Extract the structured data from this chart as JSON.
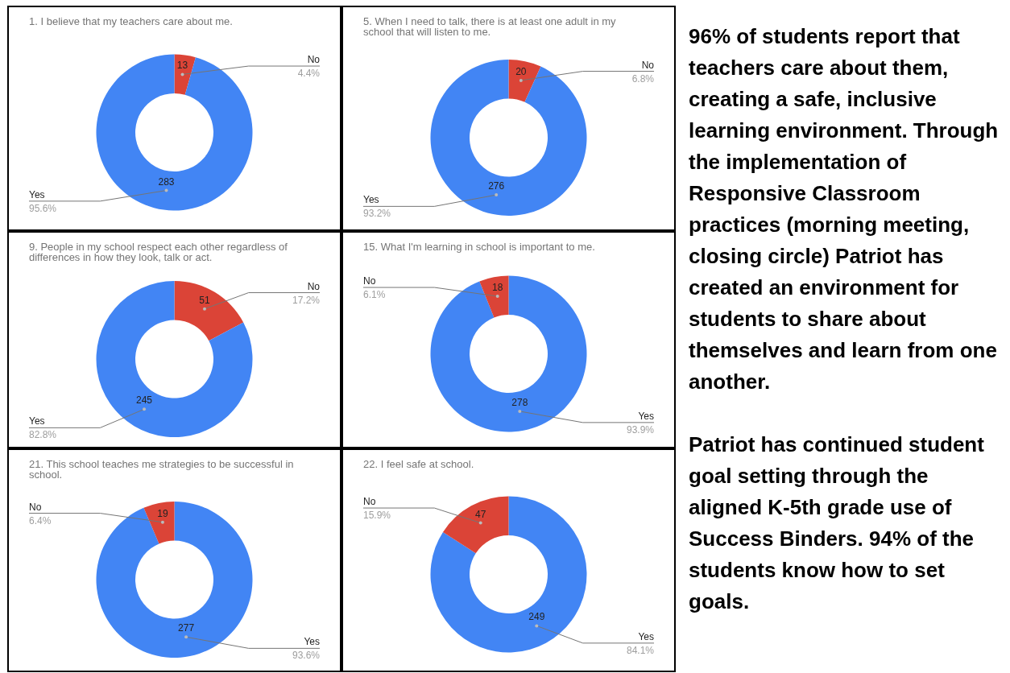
{
  "chart_data": [
    {
      "type": "donut",
      "title": "1.  I believe that my teachers care about me.",
      "categories": [
        "No",
        "Yes"
      ],
      "values": [
        13,
        283
      ],
      "colors": [
        "#db4437",
        "#4285f4"
      ],
      "data_labels": true,
      "annotations": [
        "4.4%",
        "95.6%"
      ]
    },
    {
      "type": "donut",
      "title": "5.  When I need to talk, there is at least one adult in my school that will listen to me.",
      "categories": [
        "No",
        "Yes"
      ],
      "values": [
        20,
        276
      ],
      "colors": [
        "#db4437",
        "#4285f4"
      ],
      "data_labels": true,
      "annotations": [
        "6.8%",
        "93.2%"
      ]
    },
    {
      "type": "donut",
      "title": "9.  People in my school respect each other regardless of differences in how they look, talk or act.",
      "categories": [
        "No",
        "Yes"
      ],
      "values": [
        51,
        245
      ],
      "colors": [
        "#db4437",
        "#4285f4"
      ],
      "data_labels": true,
      "annotations": [
        "17.2%",
        "82.8%"
      ]
    },
    {
      "type": "donut",
      "title": "15.  What I'm learning in school is important to me.",
      "categories": [
        "Yes",
        "No"
      ],
      "values": [
        278,
        18
      ],
      "colors": [
        "#4285f4",
        "#db4437"
      ],
      "data_labels": true,
      "annotations": [
        "93.9%",
        "6.1%"
      ]
    },
    {
      "type": "donut",
      "title": "21.  This school teaches me strategies to be successful in school.",
      "categories": [
        "Yes",
        "No"
      ],
      "values": [
        277,
        19
      ],
      "colors": [
        "#4285f4",
        "#db4437"
      ],
      "data_labels": true,
      "annotations": [
        "93.6%",
        "6.4%"
      ]
    },
    {
      "type": "donut",
      "title": "22.  I feel safe at school.",
      "categories": [
        "Yes",
        "No"
      ],
      "values": [
        249,
        47
      ],
      "colors": [
        "#4285f4",
        "#db4437"
      ],
      "data_labels": true,
      "annotations": [
        "84.1%",
        "15.9%"
      ]
    },
    {
      "type": "other",
      "annotations": [
        "96% of students report that teachers care about them, creating a safe, inclusive learning environment. Through the implementation of Responsive Classroom practices (morning meeting, closing circle) Patriot has created an environment for students to share about themselves and learn from one another.",
        "Patriot has continued student goal setting through the aligned K-5th grade use of Success Binders.  94% of the students know how to set goals."
      ]
    }
  ]
}
